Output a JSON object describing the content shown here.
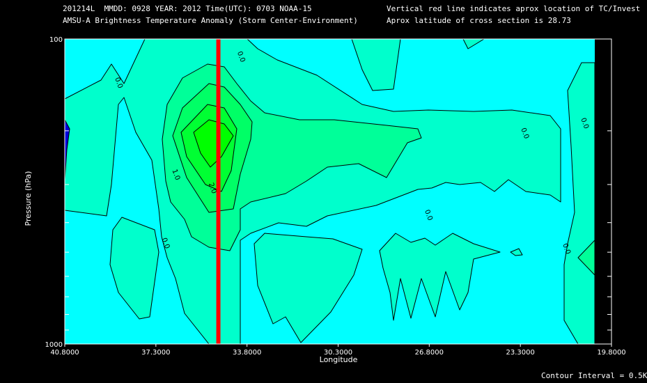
{
  "header": {
    "line1_left": "201214L  MMDD: 0928 YEAR: 2012 Time(UTC): 0703 NOAA-15",
    "line2_left": "AMSU-A Brightness Temperature Anomaly (Storm Center-Environment)",
    "line1_right": "Vertical red line indicates aprox location of TC/Invest",
    "line2_right": "Aprox latitude of cross section is 28.73"
  },
  "footer": {
    "contour_interval": "Contour Interval = 0.5K"
  },
  "colors": {
    "background": "#000000",
    "plot_bg": "#00ffff",
    "level_0": "#00ffcc",
    "level_0_5": "#00ff99",
    "level_1": "#00ff66",
    "level_1_5": "#00ff33",
    "level_2": "#00ff00",
    "negative": "#0000dd",
    "storm_line": "#ff0000",
    "contour_line": "#000000"
  },
  "chart_data": {
    "type": "heatmap",
    "title": "AMSU-A Brightness Temperature Anomaly (Storm Center-Environment)",
    "xlabel": "Longitude",
    "ylabel": "Pressure (hPa)",
    "xlim": [
      40.8,
      19.8
    ],
    "ylim": [
      1000,
      100
    ],
    "y_scale": "log",
    "x_ticks": [
      "40.8000",
      "37.3000",
      "33.8000",
      "30.3000",
      "26.8000",
      "23.3000",
      "19.8000"
    ],
    "y_ticks": [
      "100",
      "1000"
    ],
    "storm_longitude": 34.9,
    "cross_section_latitude": 28.73,
    "contour_interval": 0.5,
    "contour_labels": [
      {
        "text": "0.0",
        "lon": 38.8,
        "p": 140
      },
      {
        "text": "0.0",
        "lon": 34.1,
        "p": 115
      },
      {
        "text": "0.0",
        "lon": 23.2,
        "p": 205
      },
      {
        "text": "0.0",
        "lon": 20.9,
        "p": 190
      },
      {
        "text": "0.0",
        "lon": 26.9,
        "p": 380
      },
      {
        "text": "0.0",
        "lon": 37.0,
        "p": 470
      },
      {
        "text": "0.0",
        "lon": 21.6,
        "p": 490
      },
      {
        "text": "1.0",
        "lon": 36.6,
        "p": 280
      },
      {
        "text": "2.0",
        "lon": 35.2,
        "p": 310
      }
    ]
  }
}
